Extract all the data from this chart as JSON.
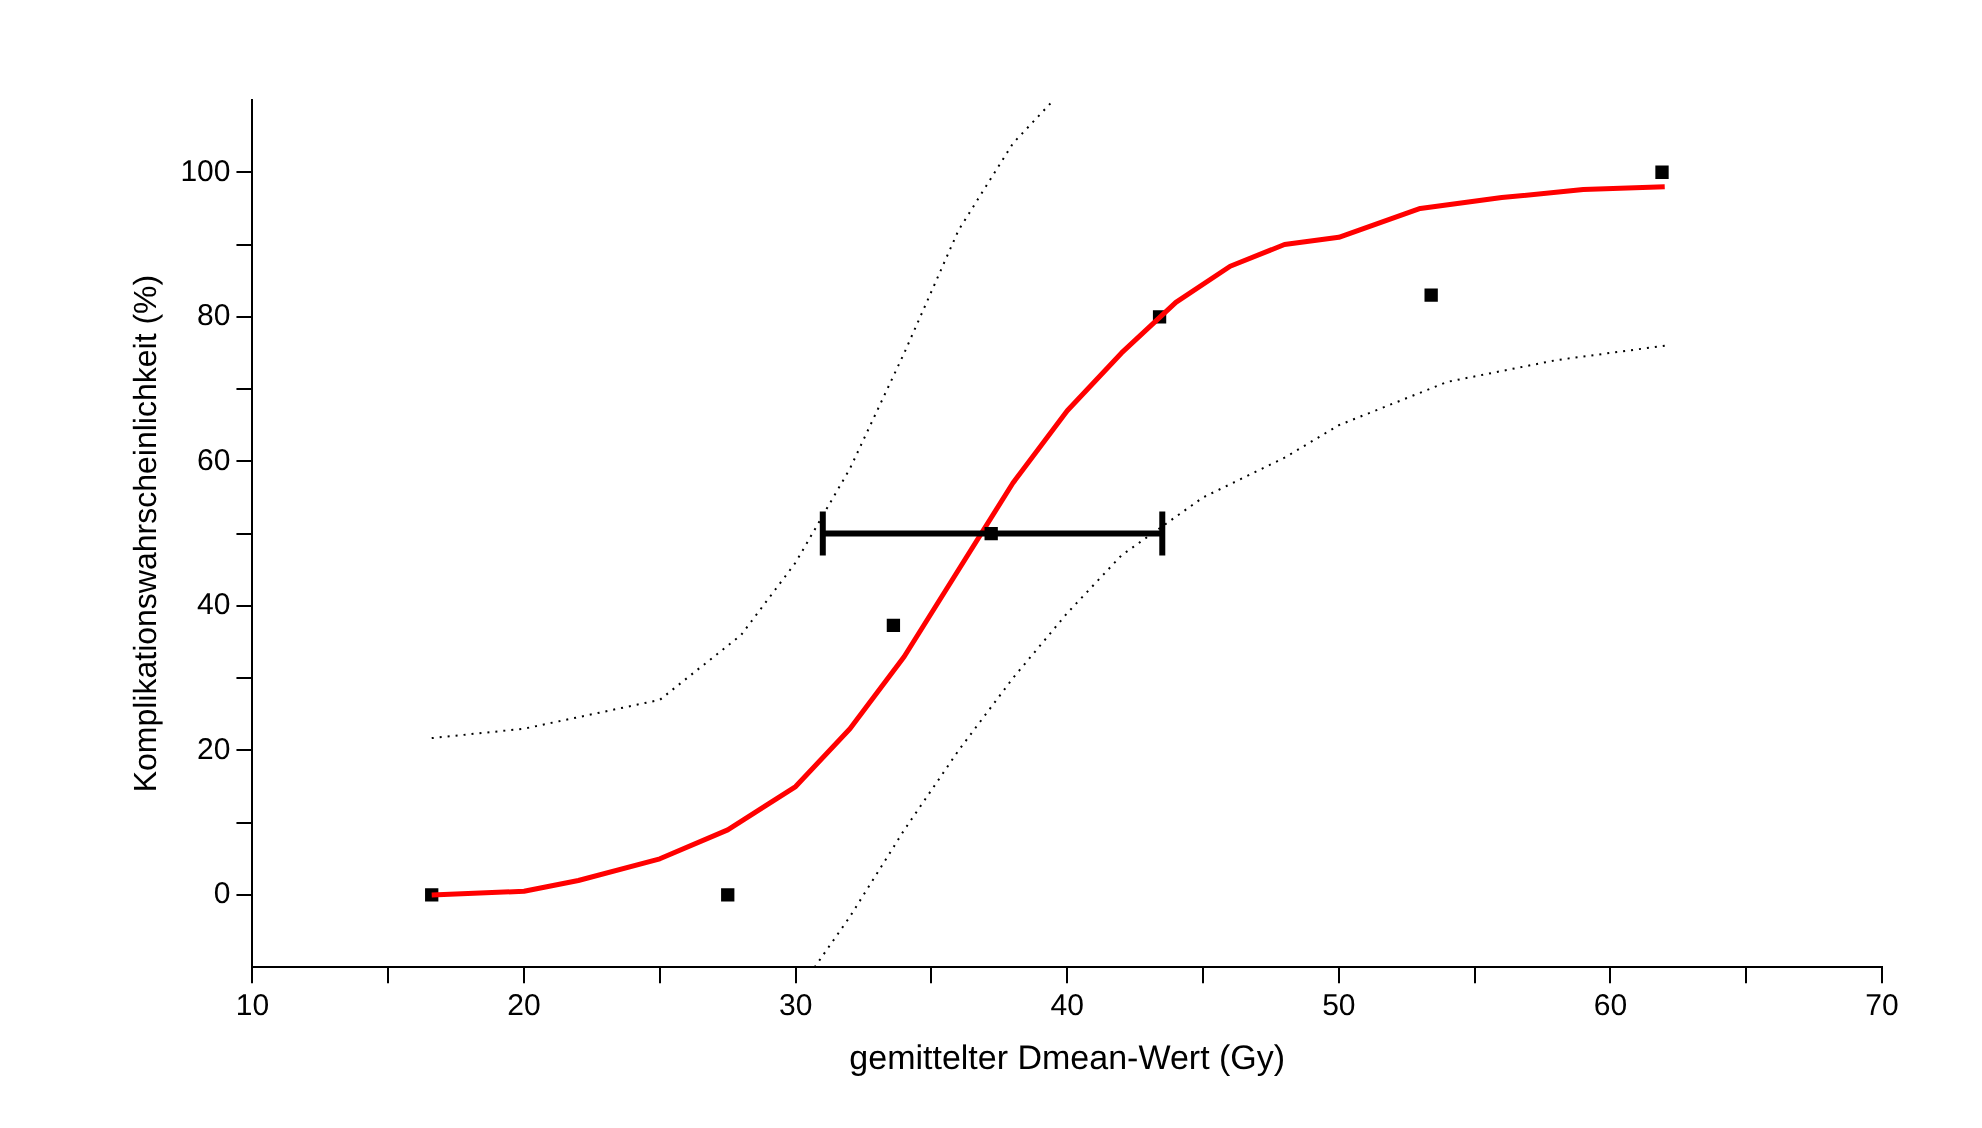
{
  "chart_data": {
    "type": "scatter",
    "xlabel": "gemittelter Dmean-Wert (Gy)",
    "ylabel": "Komplikationswahrscheinlichkeit (%)",
    "xlim": [
      10,
      70
    ],
    "ylim": [
      -10,
      110
    ],
    "xticks": [
      10,
      {
        "value": 15,
        "label": null
      },
      20,
      {
        "value": 25,
        "label": null
      },
      30,
      {
        "value": 35,
        "label": null
      },
      40,
      {
        "value": 45,
        "label": null
      },
      50,
      {
        "value": 55,
        "label": null
      },
      60,
      {
        "value": 65,
        "label": null
      },
      70
    ],
    "yticks": [
      0,
      {
        "value": 10,
        "label": null
      },
      20,
      {
        "value": 30,
        "label": null
      },
      40,
      {
        "value": 50,
        "label": null
      },
      60,
      {
        "value": 70,
        "label": null
      },
      80,
      {
        "value": 90,
        "label": null
      },
      100
    ],
    "grid": false,
    "legend": false,
    "series": [
      {
        "type": "line",
        "color": "#000000",
        "line_style": "dotted",
        "marker": "none",
        "x": [
          16.6,
          20,
          25,
          28,
          30,
          32,
          34,
          36,
          38,
          39.5
        ],
        "values": [
          21.7,
          23,
          27,
          36,
          46,
          59,
          75,
          92,
          104,
          110
        ]
      },
      {
        "type": "line",
        "color": "#000000",
        "line_style": "dotted",
        "marker": "none",
        "x": [
          30.7,
          32,
          34,
          36,
          38,
          40,
          42,
          45,
          48,
          50,
          54,
          58,
          62
        ],
        "values": [
          -10,
          -3,
          9,
          20,
          30,
          39,
          47,
          55,
          60.5,
          65,
          71,
          74,
          76
        ]
      },
      {
        "type": "line",
        "color": "#ff0000",
        "line_style": "solid",
        "marker": "none",
        "x": [
          16.6,
          20,
          22,
          25,
          27.5,
          30,
          32,
          34,
          36,
          38,
          40,
          42,
          44,
          46,
          48,
          50,
          53,
          56,
          59,
          62
        ],
        "values": [
          0,
          0.5,
          2,
          5,
          9,
          15,
          23,
          33,
          45,
          57,
          67,
          75,
          82,
          87,
          90,
          91,
          95,
          96.5,
          97.6,
          98
        ]
      },
      {
        "type": "scatter",
        "color": "#000000",
        "marker": "square",
        "x": [
          16.6,
          27.5,
          33.6,
          43.4,
          53.4,
          61.9
        ],
        "values": [
          0,
          0,
          37.3,
          80,
          83,
          100
        ]
      },
      {
        "type": "scatter",
        "color": "#000000",
        "marker": "square",
        "x": [
          37.2
        ],
        "values": [
          50
        ],
        "xerrors": [
          [
            31,
            43.5
          ]
        ]
      }
    ]
  }
}
